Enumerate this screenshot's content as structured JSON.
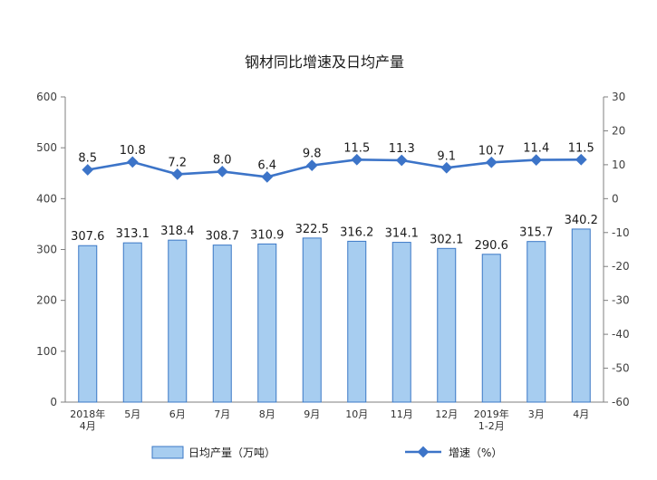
{
  "chart_data": {
    "type": "bar+line",
    "title": "钢材同比增速及日均产量",
    "categories": [
      [
        "2018年",
        "4月"
      ],
      [
        "5月"
      ],
      [
        "6月"
      ],
      [
        "7月"
      ],
      [
        "8月"
      ],
      [
        "9月"
      ],
      [
        "10月"
      ],
      [
        "11月"
      ],
      [
        "12月"
      ],
      [
        "2019年",
        "1-2月"
      ],
      [
        "3月"
      ],
      [
        "4月"
      ]
    ],
    "series": [
      {
        "name": "日均产量（万吨）",
        "type": "bar",
        "axis": "left",
        "color": "#a7cdf0",
        "values": [
          307.6,
          313.1,
          318.4,
          308.7,
          310.9,
          322.5,
          316.2,
          314.1,
          302.1,
          290.6,
          315.7,
          340.2
        ],
        "labels": [
          "307.6",
          "313.1",
          "318.4",
          "308.7",
          "310.9",
          "322.5",
          "316.2",
          "314.1",
          "302.1",
          "290.6",
          "315.7",
          "340.2"
        ]
      },
      {
        "name": "增速（%）",
        "type": "line",
        "axis": "right",
        "color": "#3c74c8",
        "values": [
          8.5,
          10.8,
          7.2,
          8.0,
          6.4,
          9.8,
          11.5,
          11.3,
          9.1,
          10.7,
          11.4,
          11.5
        ],
        "labels": [
          "8.5",
          "10.8",
          "7.2",
          "8.0",
          "6.4",
          "9.8",
          "11.5",
          "11.3",
          "9.1",
          "10.7",
          "11.4",
          "11.5"
        ]
      }
    ],
    "left_axis": {
      "ylim": [
        0,
        600
      ],
      "ticks": [
        0,
        100,
        200,
        300,
        400,
        500,
        600
      ],
      "tick_labels": [
        "0",
        "100",
        "200",
        "300",
        "400",
        "500",
        "600"
      ]
    },
    "right_axis": {
      "ylim": [
        -60,
        30
      ],
      "ticks": [
        -60,
        -50,
        -40,
        -30,
        -20,
        -10,
        0,
        10,
        20,
        30
      ],
      "tick_labels": [
        "-60",
        "-50",
        "-40",
        "-30",
        "-20",
        "-10",
        "0",
        "10",
        "20",
        "30"
      ]
    },
    "grid": false,
    "legend_position": "bottom"
  }
}
